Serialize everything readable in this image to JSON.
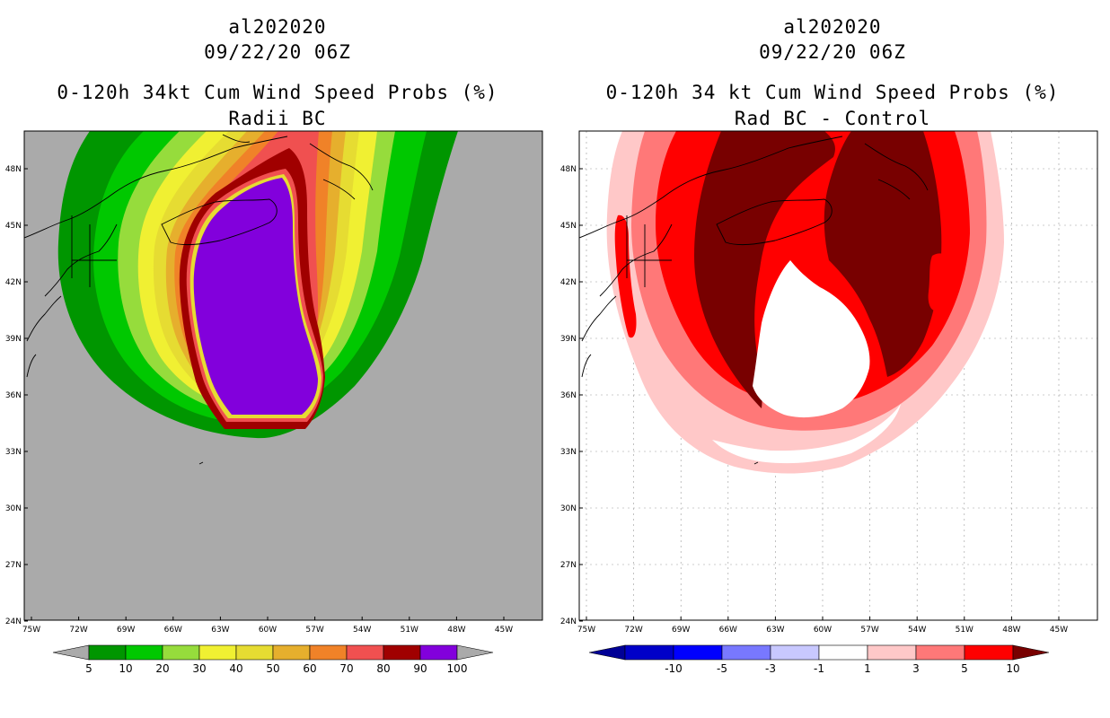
{
  "left_panel": {
    "title_line1": "al202020",
    "title_line2": "09/22/20 06Z",
    "title_line3": "0-120h 34kt Cum Wind Speed Probs (%)",
    "title_line4": "Radii BC",
    "colorbar": {
      "labels": [
        "5",
        "10",
        "20",
        "30",
        "40",
        "50",
        "60",
        "70",
        "80",
        "90",
        "100"
      ],
      "colors": [
        "#009600",
        "#00c800",
        "#96dc3c",
        "#f0f032",
        "#e6dc32",
        "#e6af2d",
        "#f08228",
        "#f05050",
        "#a00000",
        "#8200dc"
      ],
      "under_color": "#aaaaaa",
      "over_color": "#aaaaaa"
    },
    "background_color": "#aaaaaa"
  },
  "right_panel": {
    "title_line1": "al202020",
    "title_line2": "09/22/20 06Z",
    "title_line3": "0-120h 34 kt Cum Wind Speed Probs (%)",
    "title_line4": "Rad BC - Control",
    "colorbar": {
      "labels": [
        "-10",
        "-5",
        "-3",
        "-1",
        "1",
        "3",
        "5",
        "10"
      ],
      "colors": [
        "#0000c8",
        "#0000ff",
        "#7878ff",
        "#c8c8ff",
        "#ffffff",
        "#ffc8c8",
        "#ff7878",
        "#ff0000"
      ],
      "under_color": "#000096",
      "over_color": "#780000"
    },
    "background_color": "#ffffff"
  },
  "axes": {
    "x_labels": [
      "75W",
      "72W",
      "69W",
      "66W",
      "63W",
      "60W",
      "57W",
      "54W",
      "51W",
      "48W",
      "45W"
    ],
    "y_labels": [
      "48N",
      "45N",
      "42N",
      "39N",
      "36N",
      "33N",
      "30N",
      "27N",
      "24N"
    ]
  }
}
